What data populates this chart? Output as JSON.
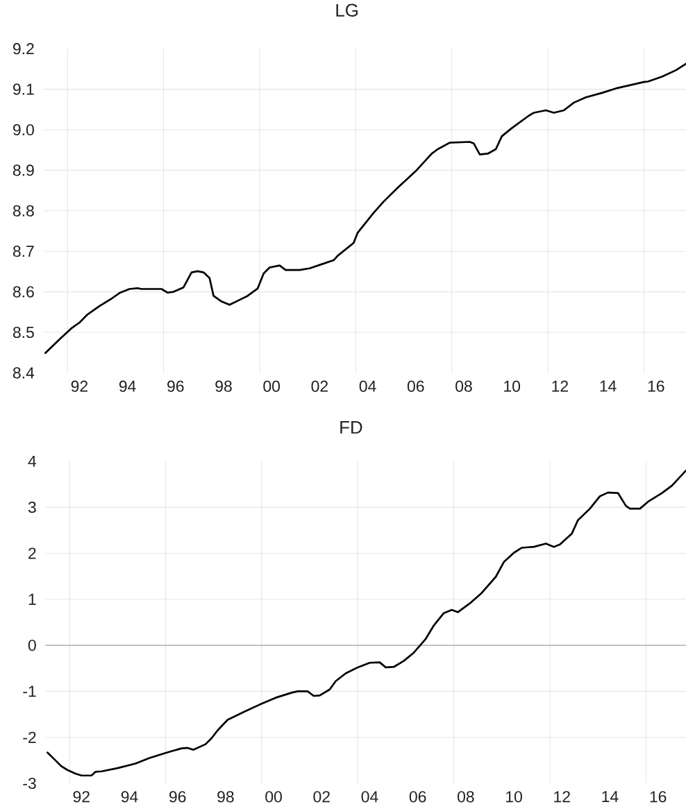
{
  "chart_data": [
    {
      "type": "line",
      "title": "LG",
      "color": "#000000",
      "line_style": "solid",
      "marker": "none",
      "grid": "y",
      "x": [
        "1991-02",
        "1991-10",
        "1992-03",
        "1992-07",
        "1992-11",
        "1993-05",
        "1993-11",
        "1994-03",
        "1994-08",
        "1994-12",
        "1995-02",
        "1995-12",
        "1996-03",
        "1996-06",
        "1996-11",
        "1997-03",
        "1997-06",
        "1997-09",
        "1997-12",
        "1998-02",
        "1998-06",
        "1998-10",
        "1999-05",
        "1999-07",
        "1999-12",
        "2000-03",
        "2000-06",
        "2000-11",
        "2001-02",
        "2001-09",
        "2002-02",
        "2002-08",
        "2003-02",
        "2003-04",
        "2003-09",
        "2003-12",
        "2004-02",
        "2004-10",
        "2005-03",
        "2005-10",
        "2006-07",
        "2007-03",
        "2007-06",
        "2007-12",
        "2008-10",
        "2008-12",
        "2009-03",
        "2009-07",
        "2009-11",
        "2010-02",
        "2010-07",
        "2011-03",
        "2011-06",
        "2011-12",
        "2012-04",
        "2012-09",
        "2013-02",
        "2013-08",
        "2014-04",
        "2014-11",
        "2015-07",
        "2016-01",
        "2016-03",
        "2016-10",
        "2017-05",
        "2017-10"
      ],
      "values": [
        8.449,
        8.487,
        8.51,
        8.524,
        8.544,
        8.565,
        8.583,
        8.597,
        8.607,
        8.609,
        8.607,
        8.607,
        8.598,
        8.6,
        8.611,
        8.648,
        8.651,
        8.648,
        8.634,
        8.59,
        8.576,
        8.568,
        8.585,
        8.59,
        8.608,
        8.645,
        8.66,
        8.665,
        8.654,
        8.654,
        8.658,
        8.668,
        8.678,
        8.689,
        8.709,
        8.721,
        8.746,
        8.795,
        8.823,
        8.857,
        8.898,
        8.941,
        8.952,
        8.968,
        8.97,
        8.966,
        8.939,
        8.941,
        8.952,
        8.984,
        9.004,
        9.033,
        9.042,
        9.048,
        9.042,
        9.048,
        9.067,
        9.08,
        9.091,
        9.102,
        9.111,
        9.118,
        9.119,
        9.131,
        9.147,
        9.163
      ],
      "xlim": [
        "1991-01",
        "2017-10"
      ],
      "ylim": [
        8.4,
        9.2
      ],
      "xticks": [
        {
          "value": "1992-07",
          "label": "92"
        },
        {
          "value": "1994-07",
          "label": "94"
        },
        {
          "value": "1996-07",
          "label": "96"
        },
        {
          "value": "1998-07",
          "label": "98"
        },
        {
          "value": "2000-07",
          "label": "00"
        },
        {
          "value": "2002-07",
          "label": "02"
        },
        {
          "value": "2004-07",
          "label": "04"
        },
        {
          "value": "2006-07",
          "label": "06"
        },
        {
          "value": "2008-07",
          "label": "08"
        },
        {
          "value": "2010-07",
          "label": "10"
        },
        {
          "value": "2012-07",
          "label": "12"
        },
        {
          "value": "2014-07",
          "label": "14"
        },
        {
          "value": "2016-07",
          "label": "16"
        }
      ],
      "yticks": [
        8.4,
        8.5,
        8.6,
        8.7,
        8.8,
        8.9,
        {
          "value": 9.0,
          "label": "9.0"
        },
        9.1,
        9.2
      ],
      "ref_lines": [
        {
          "axis": "x",
          "value": "1992-01",
          "color": "#e6e6e6"
        },
        {
          "axis": "x",
          "value": "1996-01",
          "color": "#e6e6e6"
        },
        {
          "axis": "x",
          "value": "2000-01",
          "color": "#e6e6e6"
        },
        {
          "axis": "x",
          "value": "2004-01",
          "color": "#e6e6e6"
        },
        {
          "axis": "x",
          "value": "2008-01",
          "color": "#e6e6e6"
        },
        {
          "axis": "x",
          "value": "2012-01",
          "color": "#e6e6e6"
        },
        {
          "axis": "x",
          "value": "2016-01",
          "color": "#e6e6e6"
        }
      ]
    },
    {
      "type": "line",
      "title": "FD",
      "color": "#000000",
      "line_style": "solid",
      "marker": "none",
      "grid": "y",
      "x": [
        "1991-02",
        "1991-06",
        "1991-09",
        "1991-12",
        "1992-04",
        "1992-07",
        "1992-12",
        "1993-02",
        "1993-05",
        "1994-01",
        "1994-10",
        "1995-05",
        "1996-01",
        "1996-09",
        "1996-12",
        "1997-03",
        "1997-09",
        "1997-12",
        "1998-03",
        "1998-08",
        "1999-04",
        "1999-12",
        "2000-08",
        "2001-04",
        "2001-07",
        "2001-12",
        "2002-03",
        "2002-06",
        "2002-11",
        "2003-02",
        "2003-07",
        "2004-01",
        "2004-07",
        "2004-12",
        "2005-03",
        "2005-07",
        "2005-12",
        "2006-05",
        "2006-11",
        "2007-03",
        "2007-08",
        "2007-12",
        "2008-03",
        "2008-09",
        "2009-03",
        "2009-10",
        "2010-02",
        "2010-07",
        "2010-11",
        "2011-05",
        "2011-11",
        "2012-03",
        "2012-06",
        "2012-12",
        "2013-03",
        "2013-09",
        "2014-02",
        "2014-06",
        "2014-11",
        "2015-03",
        "2015-05",
        "2015-10",
        "2016-02",
        "2016-09",
        "2017-02",
        "2017-09"
      ],
      "values": [
        -2.33,
        -2.5,
        -2.63,
        -2.71,
        -2.79,
        -2.83,
        -2.83,
        -2.75,
        -2.74,
        -2.67,
        -2.57,
        -2.45,
        -2.34,
        -2.24,
        -2.23,
        -2.27,
        -2.15,
        -2.02,
        -1.85,
        -1.62,
        -1.45,
        -1.29,
        -1.14,
        -1.03,
        -1.0,
        -1.0,
        -1.1,
        -1.09,
        -0.96,
        -0.78,
        -0.61,
        -0.48,
        -0.38,
        -0.37,
        -0.48,
        -0.47,
        -0.34,
        -0.16,
        0.14,
        0.43,
        0.7,
        0.77,
        0.72,
        0.91,
        1.14,
        1.49,
        1.81,
        2.01,
        2.12,
        2.14,
        2.21,
        2.14,
        2.19,
        2.43,
        2.72,
        2.97,
        3.24,
        3.32,
        3.31,
        3.03,
        2.97,
        2.97,
        3.12,
        3.31,
        3.47,
        3.8
      ],
      "xlim": [
        "1991-01",
        "2017-09"
      ],
      "ylim": [
        -3,
        4
      ],
      "xticks": [
        {
          "value": "1992-07",
          "label": "92"
        },
        {
          "value": "1994-07",
          "label": "94"
        },
        {
          "value": "1996-07",
          "label": "96"
        },
        {
          "value": "1998-07",
          "label": "98"
        },
        {
          "value": "2000-07",
          "label": "00"
        },
        {
          "value": "2002-07",
          "label": "02"
        },
        {
          "value": "2004-07",
          "label": "04"
        },
        {
          "value": "2006-07",
          "label": "06"
        },
        {
          "value": "2008-07",
          "label": "08"
        },
        {
          "value": "2010-07",
          "label": "10"
        },
        {
          "value": "2012-07",
          "label": "12"
        },
        {
          "value": "2014-07",
          "label": "14"
        },
        {
          "value": "2016-07",
          "label": "16"
        }
      ],
      "yticks": [
        -3,
        -2,
        -1,
        0,
        1,
        2,
        3,
        4
      ],
      "ref_lines": [
        {
          "axis": "x",
          "value": "1992-01",
          "color": "#e6e6e6"
        },
        {
          "axis": "x",
          "value": "1996-01",
          "color": "#e6e6e6"
        },
        {
          "axis": "x",
          "value": "2000-01",
          "color": "#e6e6e6"
        },
        {
          "axis": "x",
          "value": "2004-01",
          "color": "#e6e6e6"
        },
        {
          "axis": "x",
          "value": "2008-01",
          "color": "#e6e6e6"
        },
        {
          "axis": "x",
          "value": "2012-01",
          "color": "#e6e6e6"
        },
        {
          "axis": "x",
          "value": "2016-01",
          "color": "#e6e6e6"
        },
        {
          "axis": "y",
          "value": 0,
          "color": "#a6a6a6"
        }
      ]
    }
  ]
}
